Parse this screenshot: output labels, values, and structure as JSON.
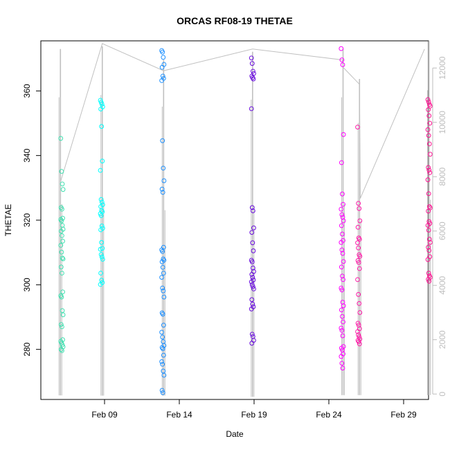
{
  "chart_data": {
    "type": "scatter",
    "title": "ORCAS RF08-19 THETAE",
    "xlabel": "Date",
    "ylabel": "THETAE",
    "x_ticks": [
      "Feb 09",
      "Feb 14",
      "Feb 19",
      "Feb 24",
      "Feb 29"
    ],
    "y_ticks": [
      "280",
      "300",
      "320",
      "340",
      "360"
    ],
    "y2_ticks": [
      "0",
      "2000",
      "4000",
      "6000",
      "8000",
      "10000",
      "12000"
    ],
    "xlim_days": [
      5.0,
      30.7
    ],
    "ylim": [
      264.5,
      375.5
    ],
    "y2lim": [
      -200,
      13000
    ],
    "grid": false,
    "legend": "none",
    "colors": {
      "RF08": "#40e0b0",
      "RF09": "#00ffff",
      "RF10": "#1e90ff",
      "RF11": "#6a0dde",
      "RF12": "#ff00ff",
      "RF13": "#ff1aa8",
      "RF14": "#ff1493",
      "altitude_trace": "#c0c0c0"
    },
    "series": [
      {
        "x": 6.15,
        "color_key": "RF08",
        "values": [
          345.3,
          335.1,
          331.2,
          329.5,
          323.9,
          323.4,
          320.6,
          320.2,
          319.8,
          318.4,
          317.2,
          316.6,
          315.2,
          313.5,
          312.2,
          310.1,
          308.3,
          308.0,
          305.5,
          303.6,
          297.8,
          296.6,
          296.2,
          292.0,
          290.7,
          287.7,
          287.0,
          283.0,
          282.5,
          282.0,
          281.4,
          280.8,
          280.0,
          279.6
        ]
      },
      {
        "x": 8.8,
        "color_key": "RF09",
        "values": [
          357.1,
          356.5,
          355.9,
          355.1,
          354.4,
          349.0,
          338.3,
          335.4,
          326.4,
          325.6,
          324.8,
          324.2,
          323.0,
          322.6,
          322.0,
          321.4,
          318.2,
          317.5,
          317.0,
          313.1,
          311.3,
          311.0,
          309.4,
          308.6,
          307.9,
          303.6,
          301.4,
          300.7,
          300.1
        ]
      },
      {
        "x": 12.9,
        "color_key": "RF10",
        "values": [
          372.5,
          372.0,
          370.4,
          368.2,
          367.3,
          364.6,
          363.9,
          363.2,
          344.6,
          336.1,
          332.2,
          329.6,
          328.6,
          311.6,
          310.8,
          310.3,
          308.0,
          307.6,
          307.1,
          305.4,
          303.6,
          302.3,
          299.0,
          298.1,
          296.2,
          291.3,
          290.9,
          287.5,
          285.3,
          283.8,
          282.4,
          281.2,
          280.6,
          280.2,
          278.2,
          276.2,
          275.4,
          273.3,
          272.0,
          267.3,
          266.6
        ]
      },
      {
        "x": 18.9,
        "color_key": "RF11",
        "values": [
          370.2,
          368.5,
          366.1,
          365.4,
          364.6,
          364.1,
          363.7,
          354.5,
          323.9,
          322.9,
          317.6,
          316.2,
          313.0,
          310.5,
          307.6,
          307.1,
          305.2,
          304.1,
          303.2,
          302.3,
          301.5,
          300.9,
          300.0,
          299.4,
          298.7,
          295.4,
          294.0,
          293.2,
          292.5,
          284.7,
          284.0,
          282.8,
          281.9
        ]
      },
      {
        "x": 24.9,
        "color_key": "RF12",
        "values": [
          373.1,
          369.6,
          368.1,
          346.5,
          337.8,
          328.1,
          324.9,
          323.4,
          321.7,
          320.9,
          319.8,
          318.3,
          315.7,
          313.7,
          313.1,
          310.8,
          309.7,
          307.2,
          305.5,
          302.7,
          301.6,
          299.0,
          298.4,
          294.6,
          293.5,
          292.2,
          290.2,
          288.5,
          286.6,
          285.9,
          284.2,
          280.9,
          280.4,
          279.8,
          278.6,
          277.8,
          275.7,
          274.2
        ]
      },
      {
        "x": 26.0,
        "color_key": "RF13",
        "values": [
          348.8,
          325.2,
          323.6,
          319.8,
          317.8,
          314.5,
          314.1,
          313.0,
          311.4,
          309.3,
          308.8,
          307.5,
          306.9,
          305.0,
          301.6,
          297.0,
          294.2,
          291.4,
          288.1,
          287.5,
          286.4,
          285.5,
          284.5,
          283.9,
          283.2,
          282.8,
          282.4,
          281.7
        ]
      },
      {
        "x": 30.7,
        "color_key": "RF14",
        "values": [
          357.3,
          356.6,
          355.8,
          355.3,
          354.2,
          352.3,
          350.0,
          348.0,
          346.2,
          343.6,
          340.4,
          336.3,
          335.5,
          334.7,
          332.5,
          328.2,
          324.2,
          323.8,
          322.8,
          319.6,
          319.0,
          318.4,
          316.9,
          314.1,
          313.1,
          311.6,
          310.6,
          308.7,
          307.8,
          303.6,
          302.8,
          302.3,
          301.7,
          301.1
        ]
      }
    ],
    "altitude_trace": {
      "axis": "right",
      "segments": [
        {
          "x": 6.05,
          "top": 12700,
          "bottom": -50
        },
        {
          "x": 8.85,
          "top": 12800,
          "bottom": -60
        },
        {
          "x": 12.95,
          "top": 12300,
          "bottom": -60
        },
        {
          "x": 18.9,
          "top": 12600,
          "bottom": -100
        },
        {
          "x": 24.95,
          "top": 12700,
          "bottom": -40
        },
        {
          "x": 26.05,
          "top": 11600,
          "bottom": -40
        },
        {
          "x": 30.7,
          "top": 13000,
          "bottom": -40
        }
      ],
      "ferry_path": [
        [
          6.05,
          7800
        ],
        [
          8.85,
          12900
        ],
        [
          12.95,
          11900
        ],
        [
          18.9,
          12700
        ],
        [
          24.9,
          12300
        ],
        [
          24.95,
          12000
        ],
        [
          25.0,
          12000
        ],
        [
          26.05,
          11400
        ],
        [
          26.1,
          7200
        ],
        [
          30.4,
          12700
        ]
      ]
    }
  }
}
